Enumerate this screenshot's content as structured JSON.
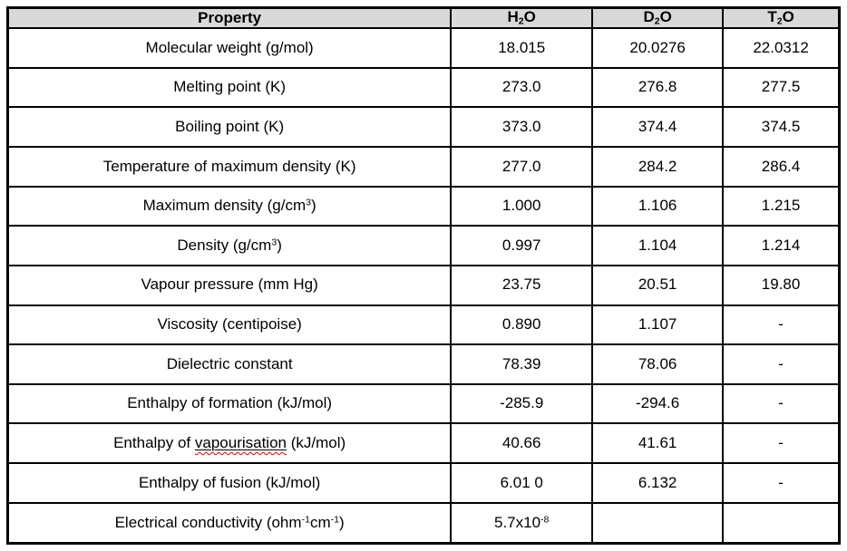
{
  "page": {
    "background": "#ffffff"
  },
  "table": {
    "header_bg": "#d9d9d9",
    "border_color": "#000000",
    "misspell_color": "#e00000",
    "column_names": [
      "property",
      "h2o",
      "d2o",
      "t2o"
    ],
    "column_widths_pct": [
      53.3,
      17.0,
      15.7,
      14.0
    ],
    "header": [
      [
        {
          "t": "Property"
        }
      ],
      [
        {
          "t": "H"
        },
        {
          "t": "2",
          "s": "sub"
        },
        {
          "t": "O"
        }
      ],
      [
        {
          "t": "D"
        },
        {
          "t": "2",
          "s": "sub"
        },
        {
          "t": "O"
        }
      ],
      [
        {
          "t": "T"
        },
        {
          "t": "2",
          "s": "sub"
        },
        {
          "t": "O"
        }
      ]
    ],
    "rows": [
      [
        [
          {
            "t": "Molecular weight (g/mol)"
          }
        ],
        [
          {
            "t": "18.015"
          }
        ],
        [
          {
            "t": "20.0276"
          }
        ],
        [
          {
            "t": "22.0312"
          }
        ]
      ],
      [
        [
          {
            "t": "Melting point (K)"
          }
        ],
        [
          {
            "t": "273.0"
          }
        ],
        [
          {
            "t": "276.8"
          }
        ],
        [
          {
            "t": "277.5"
          }
        ]
      ],
      [
        [
          {
            "t": "Boiling point (K)"
          }
        ],
        [
          {
            "t": "373.0"
          }
        ],
        [
          {
            "t": "374.4"
          }
        ],
        [
          {
            "t": "374.5"
          }
        ]
      ],
      [
        [
          {
            "t": "Temperature of maximum density (K)"
          }
        ],
        [
          {
            "t": "277.0"
          }
        ],
        [
          {
            "t": "284.2"
          }
        ],
        [
          {
            "t": "286.4"
          }
        ]
      ],
      [
        [
          {
            "t": "Maximum density (g/cm"
          },
          {
            "t": "3",
            "s": "sup"
          },
          {
            "t": ")"
          }
        ],
        [
          {
            "t": "1.000"
          }
        ],
        [
          {
            "t": "1.106"
          }
        ],
        [
          {
            "t": "1.215"
          }
        ]
      ],
      [
        [
          {
            "t": "Density (g/cm"
          },
          {
            "t": "3",
            "s": "sup"
          },
          {
            "t": ")"
          }
        ],
        [
          {
            "t": "0.997"
          }
        ],
        [
          {
            "t": "1.104"
          }
        ],
        [
          {
            "t": "1.214"
          }
        ]
      ],
      [
        [
          {
            "t": "Vapour pressure (mm Hg)"
          }
        ],
        [
          {
            "t": "23.75"
          }
        ],
        [
          {
            "t": "20.51"
          }
        ],
        [
          {
            "t": "19.80"
          }
        ]
      ],
      [
        [
          {
            "t": "Viscosity (centipoise)"
          }
        ],
        [
          {
            "t": "0.890"
          }
        ],
        [
          {
            "t": "1.107"
          }
        ],
        [
          {
            "t": "-"
          }
        ]
      ],
      [
        [
          {
            "t": "Dielectric constant"
          }
        ],
        [
          {
            "t": "78.39"
          }
        ],
        [
          {
            "t": "78.06"
          }
        ],
        [
          {
            "t": "-"
          }
        ]
      ],
      [
        [
          {
            "t": "Enthalpy of formation (kJ/mol)"
          }
        ],
        [
          {
            "t": "-285.9"
          }
        ],
        [
          {
            "t": "-294.6"
          }
        ],
        [
          {
            "t": "-"
          }
        ]
      ],
      [
        [
          {
            "t": "Enthalpy of "
          },
          {
            "t": "vapourisation",
            "s": "sq"
          },
          {
            "t": " (kJ/mol)"
          }
        ],
        [
          {
            "t": "40.66"
          }
        ],
        [
          {
            "t": "41.61"
          }
        ],
        [
          {
            "t": "-"
          }
        ]
      ],
      [
        [
          {
            "t": "Enthalpy of fusion (kJ/mol)"
          }
        ],
        [
          {
            "t": "6.01 0"
          }
        ],
        [
          {
            "t": "6.132"
          }
        ],
        [
          {
            "t": "-"
          }
        ]
      ],
      [
        [
          {
            "t": "Electrical conductivity (ohm"
          },
          {
            "t": "-1",
            "s": "sup"
          },
          {
            "t": "cm"
          },
          {
            "t": "-1",
            "s": "sup"
          },
          {
            "t": ")"
          }
        ],
        [
          {
            "t": "5.7x10"
          },
          {
            "t": "-8",
            "s": "sup"
          }
        ],
        [
          {
            "t": ""
          }
        ],
        [
          {
            "t": ""
          }
        ]
      ]
    ]
  }
}
